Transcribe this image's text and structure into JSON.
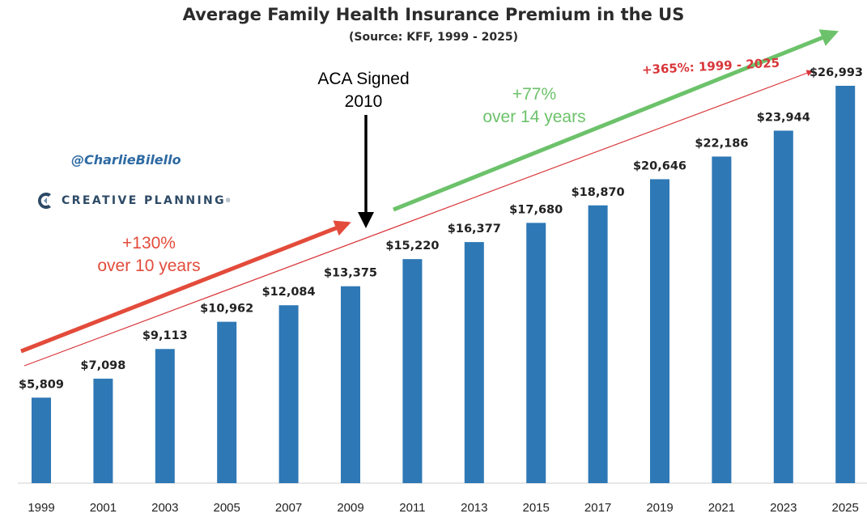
{
  "chart_data": {
    "type": "bar",
    "title": "Average Family Health Insurance Premium in the US",
    "subtitle": "(Source: KFF, 1999 - 2025)",
    "categories": [
      "1999",
      "2001",
      "2003",
      "2005",
      "2007",
      "2009",
      "2011",
      "2013",
      "2015",
      "2017",
      "2019",
      "2021",
      "2023",
      "2025"
    ],
    "values": [
      5809,
      7098,
      9113,
      10962,
      12084,
      13375,
      15220,
      16377,
      17680,
      18870,
      20646,
      22186,
      23944,
      26993
    ],
    "value_labels": [
      "$5,809",
      "$7,098",
      "$9,113",
      "$10,962",
      "$12,084",
      "$13,375",
      "$15,220",
      "$16,377",
      "$17,680",
      "$18,870",
      "$20,646",
      "$22,186",
      "$23,944",
      "$26,993"
    ],
    "xlabel": "",
    "ylabel": "",
    "ylim": [
      0,
      30000
    ],
    "grid": false,
    "bar_color": "#2e78b5",
    "annotations": {
      "aca_label": [
        "ACA Signed",
        "2010"
      ],
      "pre_aca_label": [
        "+130%",
        "over 10 years"
      ],
      "post_aca_label": [
        "+77%",
        "over 14 years"
      ],
      "total_label": "+365%: 1999 - 2025",
      "pre_aca_color": "#e34b3b",
      "post_aca_color": "#6cc26a",
      "total_color": "#d9363a"
    }
  },
  "branding": {
    "handle": "@CharlieBilello",
    "company": "CREATIVE PLANNING",
    "company_mark": "®",
    "logo_color": "#2d4a66"
  }
}
